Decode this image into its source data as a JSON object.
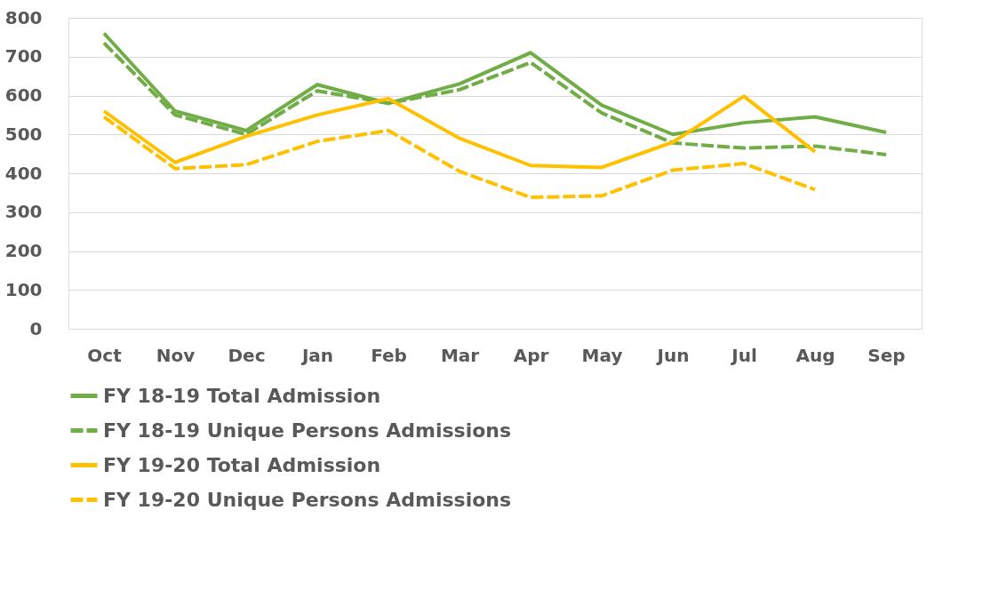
{
  "chart_data": {
    "type": "line",
    "categories": [
      "Oct",
      "Nov",
      "Dec",
      "Jan",
      "Feb",
      "Mar",
      "Apr",
      "May",
      "Jun",
      "Jul",
      "Aug",
      "Sep"
    ],
    "series": [
      {
        "name": "FY 18-19 Total Admission",
        "color": "#70ad47",
        "line_style": "solid",
        "values": [
          760,
          560,
          510,
          628,
          580,
          630,
          710,
          575,
          500,
          530,
          545,
          505
        ]
      },
      {
        "name": "FY 18-19 Unique Persons Admissions",
        "color": "#70ad47",
        "line_style": "dashed",
        "values": [
          735,
          550,
          500,
          612,
          580,
          615,
          685,
          555,
          478,
          465,
          470,
          448
        ]
      },
      {
        "name": "FY 19-20 Total Admission",
        "color": "#ffc000",
        "line_style": "solid",
        "values": [
          560,
          428,
          495,
          550,
          592,
          490,
          420,
          415,
          480,
          598,
          455,
          null
        ]
      },
      {
        "name": "FY 19-20 Unique Persons Admissions",
        "color": "#ffc000",
        "line_style": "dashed",
        "values": [
          545,
          412,
          422,
          482,
          510,
          405,
          338,
          342,
          408,
          425,
          358,
          null
        ]
      }
    ],
    "ylim": [
      0,
      800
    ],
    "yticks": [
      0,
      100,
      200,
      300,
      400,
      500,
      600,
      700,
      800
    ],
    "grid": "y",
    "legend": "bottom",
    "marker": "none"
  }
}
